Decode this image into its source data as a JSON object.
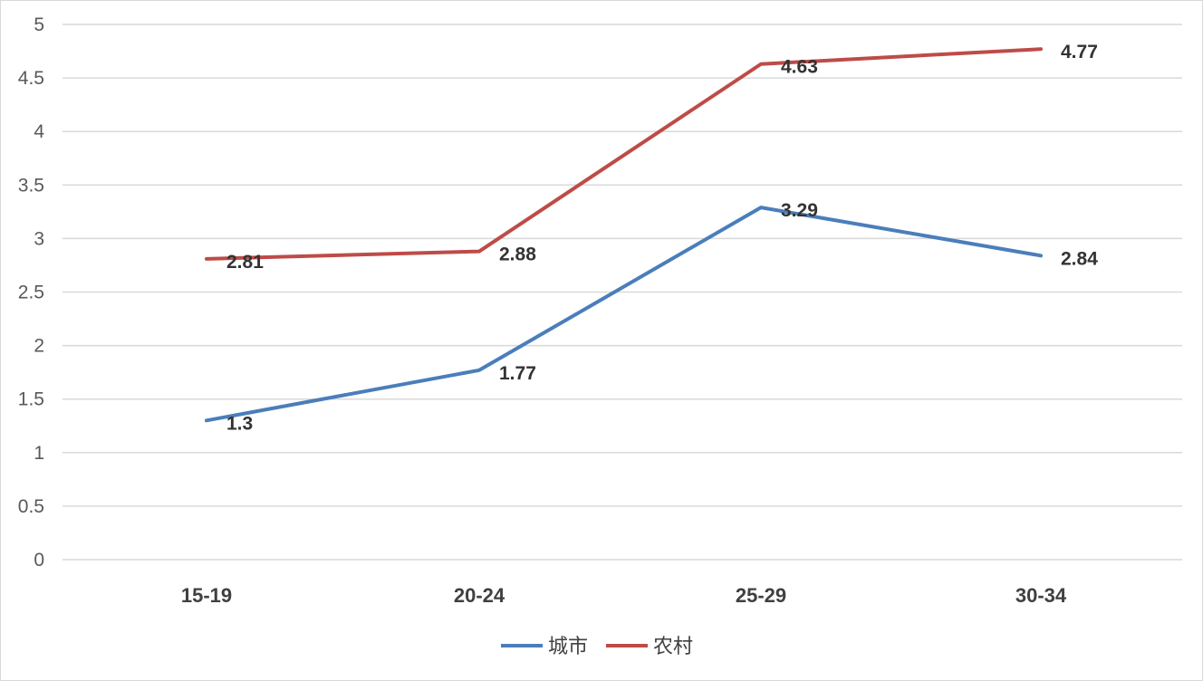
{
  "chart_data": {
    "type": "line",
    "title": "",
    "xlabel": "",
    "ylabel": "",
    "categories": [
      "15-19",
      "20-24",
      "25-29",
      "30-34"
    ],
    "ylim": [
      0,
      5
    ],
    "y_ticks": [
      0,
      0.5,
      1,
      1.5,
      2,
      2.5,
      3,
      3.5,
      4,
      4.5,
      5
    ],
    "y_tick_labels": [
      "0",
      "0.5",
      "1",
      "1.5",
      "2",
      "2.5",
      "3",
      "3.5",
      "4",
      "4.5",
      "5"
    ],
    "grid": true,
    "legend_position": "bottom",
    "series": [
      {
        "name": "城市",
        "color": "#4a7ebb",
        "values": [
          1.3,
          1.77,
          3.29,
          2.84
        ],
        "labels": [
          "1.3",
          "1.77",
          "3.29",
          "2.84"
        ]
      },
      {
        "name": "农村",
        "color": "#be4b48",
        "values": [
          2.81,
          2.88,
          4.63,
          4.77
        ],
        "labels": [
          "2.81",
          "2.88",
          "4.63",
          "4.77"
        ]
      }
    ]
  }
}
